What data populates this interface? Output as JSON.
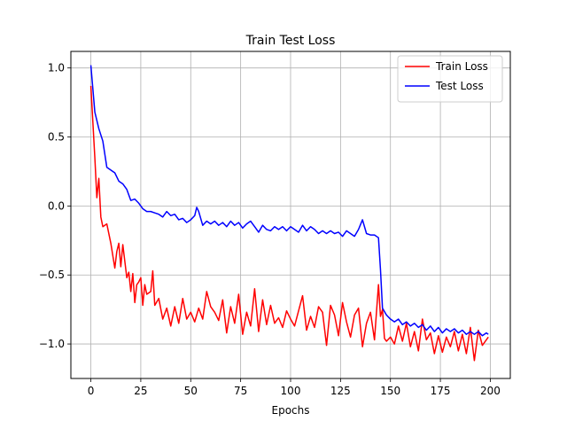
{
  "chart_data": {
    "type": "line",
    "title": "Train Test Loss",
    "xlabel": "Epochs",
    "ylabel": "",
    "xlim": [
      -10,
      210
    ],
    "ylim": [
      -1.25,
      1.12
    ],
    "xticks": [
      0,
      25,
      50,
      75,
      100,
      125,
      150,
      175,
      200
    ],
    "xtick_labels": [
      "0",
      "25",
      "50",
      "75",
      "100",
      "125",
      "150",
      "175",
      "200"
    ],
    "yticks": [
      -1.0,
      -0.5,
      0.0,
      0.5,
      1.0
    ],
    "ytick_labels": [
      "−1.0",
      "−0.5",
      "0.0",
      "0.5",
      "1.0"
    ],
    "grid": true,
    "legend_position": "top-right",
    "series": [
      {
        "name": "Train Loss",
        "color": "#ff0000",
        "x": [
          0,
          2,
          3,
          4,
          5,
          6,
          8,
          10,
          12,
          13,
          14,
          15,
          16,
          18,
          19,
          20,
          21,
          22,
          23,
          24,
          25,
          26,
          27,
          28,
          30,
          31,
          32,
          34,
          36,
          38,
          40,
          42,
          44,
          46,
          48,
          50,
          52,
          54,
          56,
          58,
          60,
          62,
          64,
          66,
          68,
          70,
          72,
          74,
          76,
          78,
          80,
          82,
          84,
          86,
          88,
          90,
          92,
          94,
          96,
          98,
          100,
          102,
          104,
          106,
          108,
          110,
          112,
          114,
          116,
          118,
          120,
          122,
          124,
          126,
          128,
          130,
          132,
          134,
          136,
          138,
          140,
          142,
          144,
          145,
          146,
          147,
          148,
          150,
          152,
          154,
          156,
          158,
          160,
          162,
          164,
          166,
          168,
          170,
          172,
          174,
          176,
          178,
          180,
          182,
          184,
          186,
          188,
          190,
          192,
          194,
          196,
          198,
          199
        ],
        "y": [
          0.87,
          0.35,
          0.06,
          0.2,
          -0.08,
          -0.15,
          -0.13,
          -0.27,
          -0.45,
          -0.33,
          -0.27,
          -0.44,
          -0.28,
          -0.52,
          -0.48,
          -0.62,
          -0.49,
          -0.7,
          -0.57,
          -0.55,
          -0.52,
          -0.72,
          -0.57,
          -0.64,
          -0.62,
          -0.47,
          -0.72,
          -0.67,
          -0.82,
          -0.74,
          -0.87,
          -0.73,
          -0.85,
          -0.67,
          -0.82,
          -0.77,
          -0.84,
          -0.74,
          -0.82,
          -0.62,
          -0.73,
          -0.77,
          -0.83,
          -0.68,
          -0.92,
          -0.73,
          -0.85,
          -0.64,
          -0.93,
          -0.77,
          -0.87,
          -0.6,
          -0.91,
          -0.68,
          -0.86,
          -0.72,
          -0.85,
          -0.81,
          -0.88,
          -0.76,
          -0.82,
          -0.87,
          -0.76,
          -0.65,
          -0.9,
          -0.8,
          -0.88,
          -0.73,
          -0.77,
          -1.01,
          -0.72,
          -0.79,
          -0.94,
          -0.7,
          -0.84,
          -0.95,
          -0.79,
          -0.74,
          -1.02,
          -0.85,
          -0.77,
          -0.97,
          -0.57,
          -0.8,
          -0.75,
          -0.96,
          -0.98,
          -0.95,
          -1.0,
          -0.87,
          -0.98,
          -0.85,
          -1.02,
          -0.91,
          -1.05,
          -0.82,
          -0.97,
          -0.92,
          -1.07,
          -0.94,
          -1.06,
          -0.95,
          -1.02,
          -0.91,
          -1.05,
          -0.93,
          -1.07,
          -0.88,
          -1.12,
          -0.9,
          -1.01,
          -0.97,
          -0.95
        ]
      },
      {
        "name": "Test Loss",
        "color": "#0000ff",
        "x": [
          0,
          2,
          4,
          6,
          8,
          10,
          12,
          14,
          16,
          18,
          20,
          22,
          24,
          26,
          28,
          30,
          32,
          34,
          36,
          38,
          40,
          42,
          44,
          46,
          48,
          50,
          52,
          53,
          54,
          56,
          58,
          60,
          62,
          64,
          66,
          68,
          70,
          72,
          74,
          76,
          78,
          80,
          82,
          84,
          86,
          88,
          90,
          92,
          94,
          96,
          98,
          100,
          102,
          104,
          106,
          108,
          110,
          112,
          114,
          116,
          118,
          120,
          122,
          124,
          126,
          128,
          130,
          132,
          134,
          136,
          138,
          140,
          142,
          144,
          145,
          146,
          148,
          150,
          152,
          154,
          156,
          158,
          160,
          162,
          164,
          166,
          168,
          170,
          172,
          174,
          176,
          178,
          180,
          182,
          184,
          186,
          188,
          190,
          192,
          194,
          196,
          198,
          199
        ],
        "y": [
          1.02,
          0.68,
          0.56,
          0.47,
          0.28,
          0.26,
          0.24,
          0.18,
          0.16,
          0.12,
          0.04,
          0.05,
          0.02,
          -0.02,
          -0.04,
          -0.04,
          -0.05,
          -0.06,
          -0.08,
          -0.04,
          -0.07,
          -0.06,
          -0.1,
          -0.09,
          -0.12,
          -0.1,
          -0.07,
          -0.01,
          -0.04,
          -0.14,
          -0.11,
          -0.13,
          -0.11,
          -0.14,
          -0.12,
          -0.15,
          -0.11,
          -0.14,
          -0.12,
          -0.16,
          -0.13,
          -0.11,
          -0.15,
          -0.19,
          -0.14,
          -0.17,
          -0.18,
          -0.15,
          -0.17,
          -0.15,
          -0.18,
          -0.15,
          -0.17,
          -0.19,
          -0.14,
          -0.18,
          -0.15,
          -0.17,
          -0.2,
          -0.18,
          -0.2,
          -0.18,
          -0.2,
          -0.19,
          -0.22,
          -0.18,
          -0.2,
          -0.22,
          -0.17,
          -0.1,
          -0.2,
          -0.21,
          -0.21,
          -0.23,
          -0.46,
          -0.74,
          -0.79,
          -0.82,
          -0.84,
          -0.82,
          -0.86,
          -0.84,
          -0.87,
          -0.85,
          -0.88,
          -0.86,
          -0.9,
          -0.87,
          -0.91,
          -0.88,
          -0.92,
          -0.89,
          -0.91,
          -0.89,
          -0.92,
          -0.9,
          -0.93,
          -0.91,
          -0.93,
          -0.91,
          -0.94,
          -0.92,
          -0.93
        ]
      }
    ]
  }
}
